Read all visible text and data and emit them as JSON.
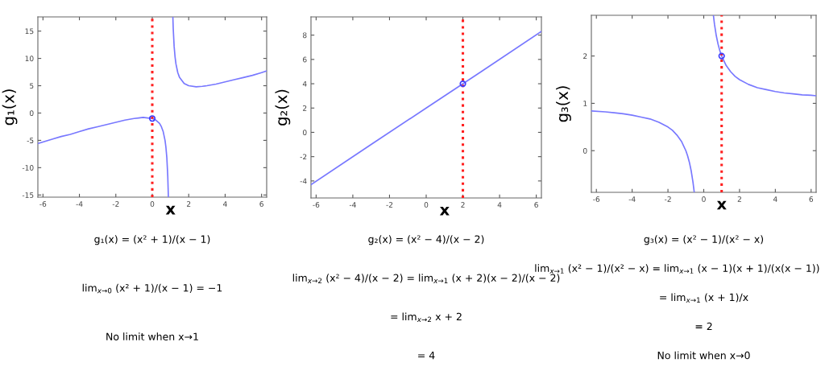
{
  "chart_data": [
    {
      "type": "line",
      "xlabel": "x",
      "ylabel": "g₁(x)",
      "xlim": [
        -6.28,
        6.28
      ],
      "ylim": [
        -15.4,
        17.6
      ],
      "xticks": [
        -6,
        -4,
        -2,
        0,
        2,
        4,
        6
      ],
      "yticks": [
        -15,
        -10,
        -5,
        0,
        5,
        10,
        15
      ],
      "series": [
        {
          "color": "#7878ff",
          "x": [
            -6.28,
            -5.5,
            -5,
            -4.5,
            -4,
            -3.5,
            -3,
            -2.5,
            -2,
            -1.5,
            -1,
            -0.75,
            -0.5,
            -0.25,
            0,
            0.2,
            0.4,
            0.5,
            0.6,
            0.7,
            0.75,
            0.8,
            0.85,
            0.884,
            1,
            1.13,
            1.15,
            1.2,
            1.25,
            1.3,
            1.4,
            1.5,
            1.75,
            2,
            2.41,
            2.75,
            3,
            3.5,
            4,
            4.5,
            5,
            5.5,
            6,
            6.28
          ],
          "values": [
            -5.6,
            -4.8,
            -4.3,
            -3.9,
            -3.4,
            -2.9,
            -2.5,
            -2.1,
            -1.7,
            -1.3,
            -1,
            -0.9,
            -0.8,
            -0.9,
            -1,
            -1.3,
            -1.9,
            -2.5,
            -3.4,
            -5,
            -6.3,
            -8.2,
            -11.5,
            -15.4,
            null,
            17.6,
            15.5,
            12.2,
            10.3,
            9,
            7.4,
            6.5,
            5.4,
            5,
            4.8,
            4.9,
            5,
            5.3,
            5.7,
            6.1,
            6.5,
            6.9,
            7.4,
            7.7
          ]
        },
        {
          "type": "scatter",
          "marker": "circle",
          "color": "#3c3cff",
          "x": [
            0
          ],
          "values": [
            -1
          ]
        }
      ],
      "ref_lines": [
        {
          "axis": "x",
          "value": 0,
          "color": "#ff2020",
          "line_style": "dotted"
        }
      ],
      "annotations": [
        "g₁(x) = (x² + 1)/(x − 1)",
        "lim$_{x→0}$ (x² + 1)/(x − 1) = −1",
        "No limit when x→1"
      ]
    },
    {
      "type": "line",
      "xlabel": "x",
      "ylabel": "g₂(x)",
      "xlim": [
        -6.28,
        6.28
      ],
      "ylim": [
        -5.4,
        9.5
      ],
      "xticks": [
        -6,
        -4,
        -2,
        0,
        2,
        4,
        6
      ],
      "yticks": [
        -4,
        -2,
        0,
        2,
        4,
        6,
        8
      ],
      "series": [
        {
          "color": "#7878ff",
          "x": [
            -6.28,
            -3,
            0,
            3,
            6.28
          ],
          "values": [
            -4.3,
            -1,
            2,
            5,
            8.3
          ]
        },
        {
          "type": "scatter",
          "marker": "circle",
          "color": "#3c3cff",
          "x": [
            2
          ],
          "values": [
            4
          ]
        }
      ],
      "ref_lines": [
        {
          "axis": "x",
          "value": 2,
          "color": "#ff2020",
          "line_style": "dotted"
        }
      ],
      "annotations": [
        "g₂(x) = (x² − 4)/(x − 2)",
        "lim$_{x→2}$ (x² − 4)/(x − 2) = lim$_{x→1}$ (x + 2)(x − 2)/(x − 2)",
        "= lim$_{x→2}$ x + 2",
        "= 4"
      ]
    },
    {
      "type": "line",
      "xlabel": "x",
      "ylabel": "g₃(x)",
      "xlim": [
        -6.28,
        6.28
      ],
      "ylim": [
        -0.88,
        2.86
      ],
      "xticks": [
        -6,
        -4,
        -2,
        0,
        2,
        4,
        6
      ],
      "yticks": [
        0,
        1,
        2
      ],
      "series": [
        {
          "color": "#7878ff",
          "x": [
            -6.28,
            -5.5,
            -5,
            -4.5,
            -4,
            -3.5,
            -3,
            -2.5,
            -2,
            -1.75,
            -1.5,
            -1.25,
            -1,
            -0.9,
            -0.8,
            -0.7,
            -0.6,
            -0.53,
            0,
            0.54,
            0.6,
            0.7,
            0.8,
            0.9,
            1,
            1.25,
            1.5,
            1.75,
            2,
            2.5,
            3,
            3.5,
            4,
            4.5,
            5,
            5.5,
            6,
            6.28
          ],
          "values": [
            0.84,
            0.82,
            0.8,
            0.78,
            0.75,
            0.71,
            0.67,
            0.6,
            0.5,
            0.43,
            0.33,
            0.2,
            0,
            -0.11,
            -0.25,
            -0.43,
            -0.67,
            -0.88,
            null,
            2.86,
            2.67,
            2.43,
            2.25,
            2.11,
            2,
            1.8,
            1.67,
            1.57,
            1.5,
            1.4,
            1.33,
            1.29,
            1.25,
            1.22,
            1.2,
            1.18,
            1.17,
            1.16
          ]
        },
        {
          "type": "scatter",
          "marker": "circle",
          "color": "#3c3cff",
          "x": [
            1
          ],
          "values": [
            2
          ]
        }
      ],
      "ref_lines": [
        {
          "axis": "x",
          "value": 1,
          "color": "#ff2020",
          "line_style": "dotted"
        }
      ],
      "annotations": [
        "g₃(x) = (x² − 1)/(x² − x)",
        "lim$_{x→1}$ (x² − 1)/(x² − x) = lim$_{x→1}$ (x − 1)(x + 1)/(x(x − 1))",
        "= lim$_{x→1}$ (x + 1)/x",
        "= 2",
        "No limit when x→0"
      ]
    }
  ]
}
